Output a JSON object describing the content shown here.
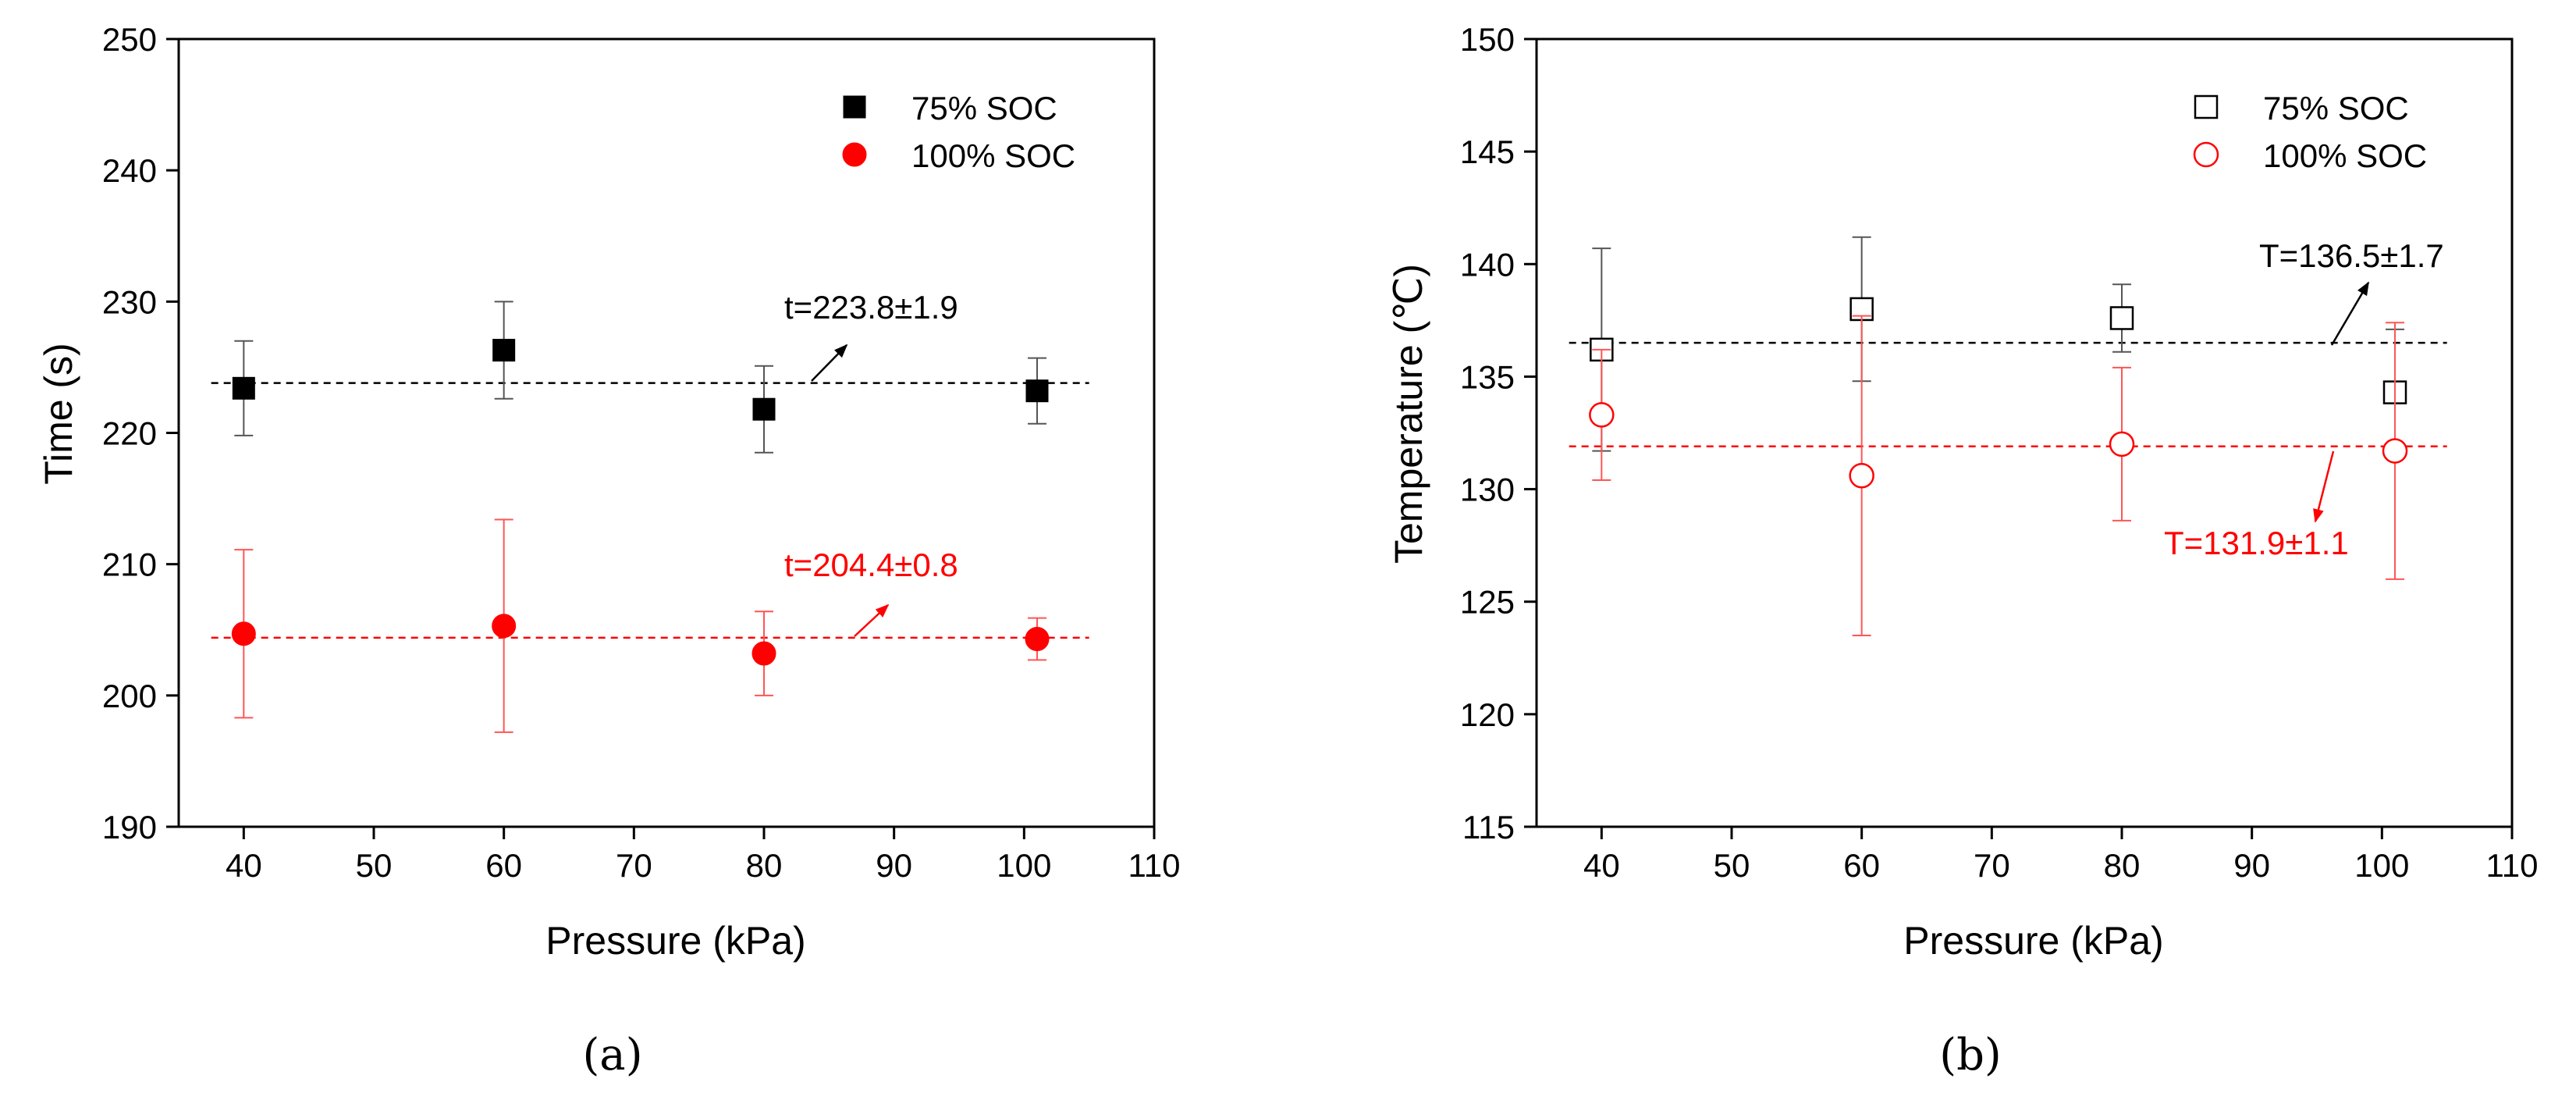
{
  "chart_data": [
    {
      "type": "scatter",
      "caption": "(a)",
      "xlabel": "Pressure (kPa)",
      "ylabel": "Time (s)",
      "xlim": [
        35,
        110
      ],
      "ylim": [
        190,
        250
      ],
      "xticks": [
        40,
        50,
        60,
        70,
        80,
        90,
        100,
        110
      ],
      "yticks": [
        190,
        200,
        210,
        220,
        230,
        240,
        250
      ],
      "marker_fill": "filled",
      "series": [
        {
          "name": "75% SOC",
          "color": "#000000",
          "marker": "square",
          "x": [
            40,
            60,
            80,
            101
          ],
          "y": [
            223.4,
            226.3,
            221.8,
            223.2
          ],
          "err": [
            3.6,
            3.7,
            3.3,
            2.5
          ]
        },
        {
          "name": "100% SOC",
          "color": "#ff0000",
          "marker": "circle",
          "x": [
            40,
            60,
            80,
            101
          ],
          "y": [
            204.7,
            205.3,
            203.2,
            204.3
          ],
          "err": [
            6.4,
            8.1,
            3.2,
            1.6
          ]
        }
      ],
      "reference_lines": [
        {
          "y": 223.8,
          "color": "#000000",
          "label": "t=223.8±1.9"
        },
        {
          "y": 204.4,
          "color": "#ff0000",
          "label": "t=204.4±0.8"
        }
      ]
    },
    {
      "type": "scatter",
      "caption": "(b)",
      "xlabel": "Pressure (kPa)",
      "ylabel": "Temperature (℃)",
      "xlim": [
        35,
        110
      ],
      "ylim": [
        115,
        150
      ],
      "xticks": [
        40,
        50,
        60,
        70,
        80,
        90,
        100,
        110
      ],
      "yticks": [
        115,
        120,
        125,
        130,
        135,
        140,
        145,
        150
      ],
      "marker_fill": "open",
      "series": [
        {
          "name": "75% SOC",
          "color": "#000000",
          "marker": "square",
          "x": [
            40,
            60,
            80,
            101
          ],
          "y": [
            136.2,
            138.0,
            137.6,
            134.3
          ],
          "err": [
            4.5,
            3.2,
            1.5,
            2.8
          ]
        },
        {
          "name": "100% SOC",
          "color": "#ff0000",
          "marker": "circle",
          "x": [
            40,
            60,
            80,
            101
          ],
          "y": [
            133.3,
            130.6,
            132.0,
            131.7
          ],
          "err": [
            2.9,
            7.1,
            3.4,
            5.7
          ]
        }
      ],
      "reference_lines": [
        {
          "y": 136.5,
          "color": "#000000",
          "label": "T=136.5±1.7"
        },
        {
          "y": 131.9,
          "color": "#ff0000",
          "label": "T=131.9±1.1"
        }
      ]
    }
  ]
}
